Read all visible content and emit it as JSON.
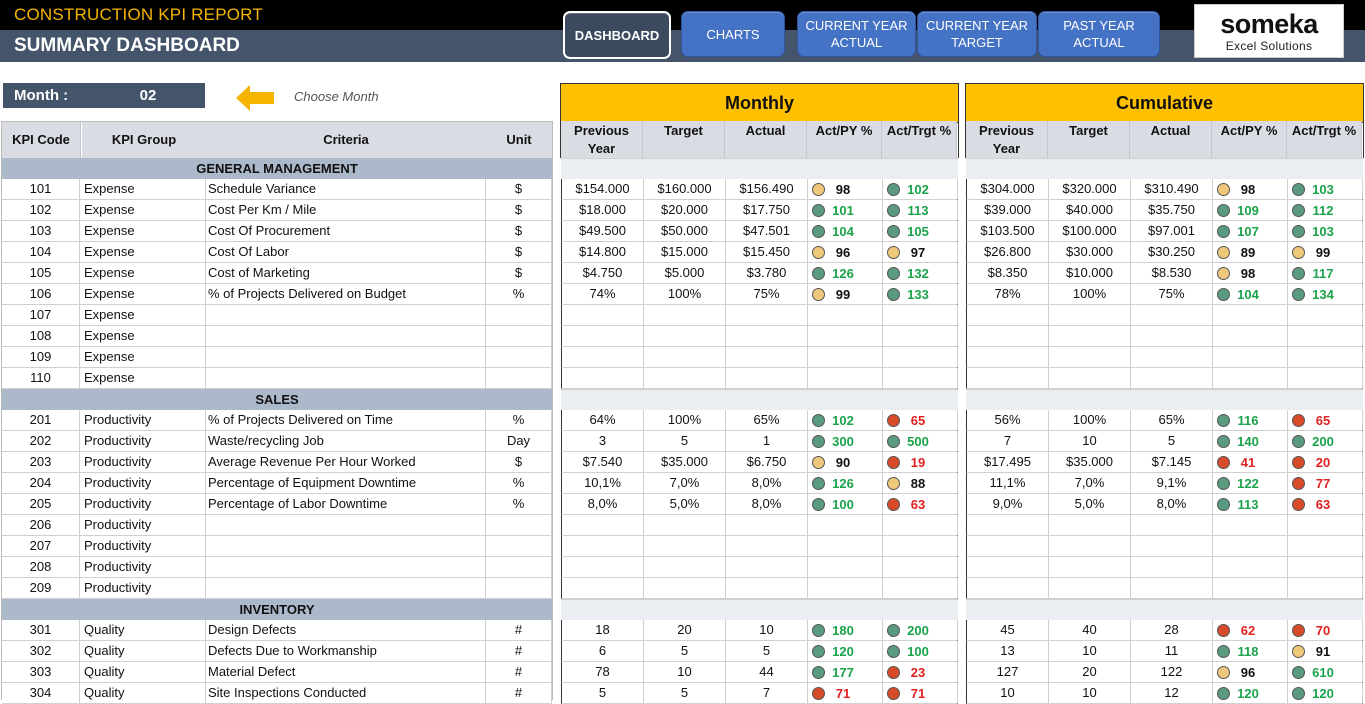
{
  "header": {
    "report_title": "CONSTRUCTION KPI REPORT",
    "dashboard_title": "SUMMARY DASHBOARD",
    "nav": [
      {
        "label": "DASHBOARD",
        "active": true
      },
      {
        "label": "CHARTS",
        "active": false
      },
      {
        "label": "CURRENT YEAR ACTUAL",
        "active": false
      },
      {
        "label": "CURRENT YEAR TARGET",
        "active": false
      },
      {
        "label": "PAST YEAR ACTUAL",
        "active": false
      }
    ],
    "logo_name": "someka",
    "logo_sub": "Excel Solutions"
  },
  "month": {
    "label": "Month :",
    "value": "02",
    "hint": "Choose Month",
    "icon": "arrow-left-icon"
  },
  "left_headers": [
    "KPI Code",
    "KPI Group",
    "Criteria",
    "Unit"
  ],
  "sections_titles": {
    "monthly": "Monthly",
    "cumulative": "Cumulative"
  },
  "metric_headers": [
    "Previous Year",
    "Target",
    "Actual",
    "Act/PY %",
    "Act/Trgt %"
  ],
  "colors": {
    "header_dark": "#44546a",
    "banner": "#ffc000",
    "nav": "#4472c4",
    "green": "#5a9a7e",
    "yellow": "#efc77a",
    "red": "#d84b2a"
  },
  "groups": [
    {
      "title": "GENERAL MANAGEMENT",
      "rows": [
        {
          "code": "101",
          "group": "Expense",
          "criteria": "Schedule Variance",
          "unit": "$",
          "m": {
            "py": "$154.000",
            "tg": "$160.000",
            "ac": "$156.490",
            "p1": "98",
            "c1": "yellow",
            "t1": "black",
            "p2": "102",
            "c2": "green",
            "t2": "green"
          },
          "c": {
            "py": "$304.000",
            "tg": "$320.000",
            "ac": "$310.490",
            "p1": "98",
            "c1": "yellow",
            "t1": "black",
            "p2": "103",
            "c2": "green",
            "t2": "green"
          }
        },
        {
          "code": "102",
          "group": "Expense",
          "criteria": "Cost Per Km / Mile",
          "unit": "$",
          "m": {
            "py": "$18.000",
            "tg": "$20.000",
            "ac": "$17.750",
            "p1": "101",
            "c1": "green",
            "t1": "green",
            "p2": "113",
            "c2": "green",
            "t2": "green"
          },
          "c": {
            "py": "$39.000",
            "tg": "$40.000",
            "ac": "$35.750",
            "p1": "109",
            "c1": "green",
            "t1": "green",
            "p2": "112",
            "c2": "green",
            "t2": "green"
          }
        },
        {
          "code": "103",
          "group": "Expense",
          "criteria": "Cost Of Procurement",
          "unit": "$",
          "m": {
            "py": "$49.500",
            "tg": "$50.000",
            "ac": "$47.501",
            "p1": "104",
            "c1": "green",
            "t1": "green",
            "p2": "105",
            "c2": "green",
            "t2": "green"
          },
          "c": {
            "py": "$103.500",
            "tg": "$100.000",
            "ac": "$97.001",
            "p1": "107",
            "c1": "green",
            "t1": "green",
            "p2": "103",
            "c2": "green",
            "t2": "green"
          }
        },
        {
          "code": "104",
          "group": "Expense",
          "criteria": "Cost Of Labor",
          "unit": "$",
          "m": {
            "py": "$14.800",
            "tg": "$15.000",
            "ac": "$15.450",
            "p1": "96",
            "c1": "yellow",
            "t1": "black",
            "p2": "97",
            "c2": "yellow",
            "t2": "black"
          },
          "c": {
            "py": "$26.800",
            "tg": "$30.000",
            "ac": "$30.250",
            "p1": "89",
            "c1": "yellow",
            "t1": "black",
            "p2": "99",
            "c2": "yellow",
            "t2": "black"
          }
        },
        {
          "code": "105",
          "group": "Expense",
          "criteria": "Cost of Marketing",
          "unit": "$",
          "m": {
            "py": "$4.750",
            "tg": "$5.000",
            "ac": "$3.780",
            "p1": "126",
            "c1": "green",
            "t1": "green",
            "p2": "132",
            "c2": "green",
            "t2": "green"
          },
          "c": {
            "py": "$8.350",
            "tg": "$10.000",
            "ac": "$8.530",
            "p1": "98",
            "c1": "yellow",
            "t1": "black",
            "p2": "117",
            "c2": "green",
            "t2": "green"
          }
        },
        {
          "code": "106",
          "group": "Expense",
          "criteria": "% of Projects Delivered on Budget",
          "unit": "%",
          "m": {
            "py": "74%",
            "tg": "100%",
            "ac": "75%",
            "p1": "99",
            "c1": "yellow",
            "t1": "black",
            "p2": "133",
            "c2": "green",
            "t2": "green"
          },
          "c": {
            "py": "78%",
            "tg": "100%",
            "ac": "75%",
            "p1": "104",
            "c1": "green",
            "t1": "green",
            "p2": "134",
            "c2": "green",
            "t2": "green"
          }
        },
        {
          "code": "107",
          "group": "Expense",
          "criteria": "",
          "unit": ""
        },
        {
          "code": "108",
          "group": "Expense",
          "criteria": "",
          "unit": ""
        },
        {
          "code": "109",
          "group": "Expense",
          "criteria": "",
          "unit": ""
        },
        {
          "code": "110",
          "group": "Expense",
          "criteria": "",
          "unit": ""
        }
      ]
    },
    {
      "title": "SALES",
      "rows": [
        {
          "code": "201",
          "group": "Productivity",
          "criteria": "% of Projects Delivered on Time",
          "unit": "%",
          "m": {
            "py": "64%",
            "tg": "100%",
            "ac": "65%",
            "p1": "102",
            "c1": "green",
            "t1": "green",
            "p2": "65",
            "c2": "red",
            "t2": "red"
          },
          "c": {
            "py": "56%",
            "tg": "100%",
            "ac": "65%",
            "p1": "116",
            "c1": "green",
            "t1": "green",
            "p2": "65",
            "c2": "red",
            "t2": "red"
          }
        },
        {
          "code": "202",
          "group": "Productivity",
          "criteria": "Waste/recycling Job",
          "unit": "Day",
          "m": {
            "py": "3",
            "tg": "5",
            "ac": "1",
            "p1": "300",
            "c1": "green",
            "t1": "green",
            "p2": "500",
            "c2": "green",
            "t2": "green"
          },
          "c": {
            "py": "7",
            "tg": "10",
            "ac": "5",
            "p1": "140",
            "c1": "green",
            "t1": "green",
            "p2": "200",
            "c2": "green",
            "t2": "green"
          }
        },
        {
          "code": "203",
          "group": "Productivity",
          "criteria": "Average Revenue Per Hour Worked",
          "unit": "$",
          "m": {
            "py": "$7.540",
            "tg": "$35.000",
            "ac": "$6.750",
            "p1": "90",
            "c1": "yellow",
            "t1": "black",
            "p2": "19",
            "c2": "red",
            "t2": "red"
          },
          "c": {
            "py": "$17.495",
            "tg": "$35.000",
            "ac": "$7.145",
            "p1": "41",
            "c1": "red",
            "t1": "red",
            "p2": "20",
            "c2": "red",
            "t2": "red"
          }
        },
        {
          "code": "204",
          "group": "Productivity",
          "criteria": "Percentage of Equipment Downtime",
          "unit": "%",
          "m": {
            "py": "10,1%",
            "tg": "7,0%",
            "ac": "8,0%",
            "p1": "126",
            "c1": "green",
            "t1": "green",
            "p2": "88",
            "c2": "yellow",
            "t2": "black"
          },
          "c": {
            "py": "11,1%",
            "tg": "7,0%",
            "ac": "9,1%",
            "p1": "122",
            "c1": "green",
            "t1": "green",
            "p2": "77",
            "c2": "red",
            "t2": "red"
          }
        },
        {
          "code": "205",
          "group": "Productivity",
          "criteria": "Percentage of Labor Downtime",
          "unit": "%",
          "m": {
            "py": "8,0%",
            "tg": "5,0%",
            "ac": "8,0%",
            "p1": "100",
            "c1": "green",
            "t1": "green",
            "p2": "63",
            "c2": "red",
            "t2": "red"
          },
          "c": {
            "py": "9,0%",
            "tg": "5,0%",
            "ac": "8,0%",
            "p1": "113",
            "c1": "green",
            "t1": "green",
            "p2": "63",
            "c2": "red",
            "t2": "red"
          }
        },
        {
          "code": "206",
          "group": "Productivity",
          "criteria": "",
          "unit": ""
        },
        {
          "code": "207",
          "group": "Productivity",
          "criteria": "",
          "unit": ""
        },
        {
          "code": "208",
          "group": "Productivity",
          "criteria": "",
          "unit": ""
        },
        {
          "code": "209",
          "group": "Productivity",
          "criteria": "",
          "unit": ""
        }
      ]
    },
    {
      "title": "INVENTORY",
      "rows": [
        {
          "code": "301",
          "group": "Quality",
          "criteria": "Design Defects",
          "unit": "#",
          "m": {
            "py": "18",
            "tg": "20",
            "ac": "10",
            "p1": "180",
            "c1": "green",
            "t1": "green",
            "p2": "200",
            "c2": "green",
            "t2": "green"
          },
          "c": {
            "py": "45",
            "tg": "40",
            "ac": "28",
            "p1": "62",
            "c1": "red",
            "t1": "red",
            "p2": "70",
            "c2": "red",
            "t2": "red"
          }
        },
        {
          "code": "302",
          "group": "Quality",
          "criteria": "Defects Due to Workmanship",
          "unit": "#",
          "m": {
            "py": "6",
            "tg": "5",
            "ac": "5",
            "p1": "120",
            "c1": "green",
            "t1": "green",
            "p2": "100",
            "c2": "green",
            "t2": "green"
          },
          "c": {
            "py": "13",
            "tg": "10",
            "ac": "11",
            "p1": "118",
            "c1": "green",
            "t1": "green",
            "p2": "91",
            "c2": "yellow",
            "t2": "black"
          }
        },
        {
          "code": "303",
          "group": "Quality",
          "criteria": "Material Defect",
          "unit": "#",
          "m": {
            "py": "78",
            "tg": "10",
            "ac": "44",
            "p1": "177",
            "c1": "green",
            "t1": "green",
            "p2": "23",
            "c2": "red",
            "t2": "red"
          },
          "c": {
            "py": "127",
            "tg": "20",
            "ac": "122",
            "p1": "96",
            "c1": "yellow",
            "t1": "black",
            "p2": "610",
            "c2": "green",
            "t2": "green"
          }
        },
        {
          "code": "304",
          "group": "Quality",
          "criteria": "Site Inspections Conducted",
          "unit": "#",
          "m": {
            "py": "5",
            "tg": "5",
            "ac": "7",
            "p1": "71",
            "c1": "red",
            "t1": "red",
            "p2": "71",
            "c2": "red",
            "t2": "red"
          },
          "c": {
            "py": "10",
            "tg": "10",
            "ac": "12",
            "p1": "120",
            "c1": "green",
            "t1": "green",
            "p2": "120",
            "c2": "green",
            "t2": "green"
          }
        }
      ]
    }
  ]
}
